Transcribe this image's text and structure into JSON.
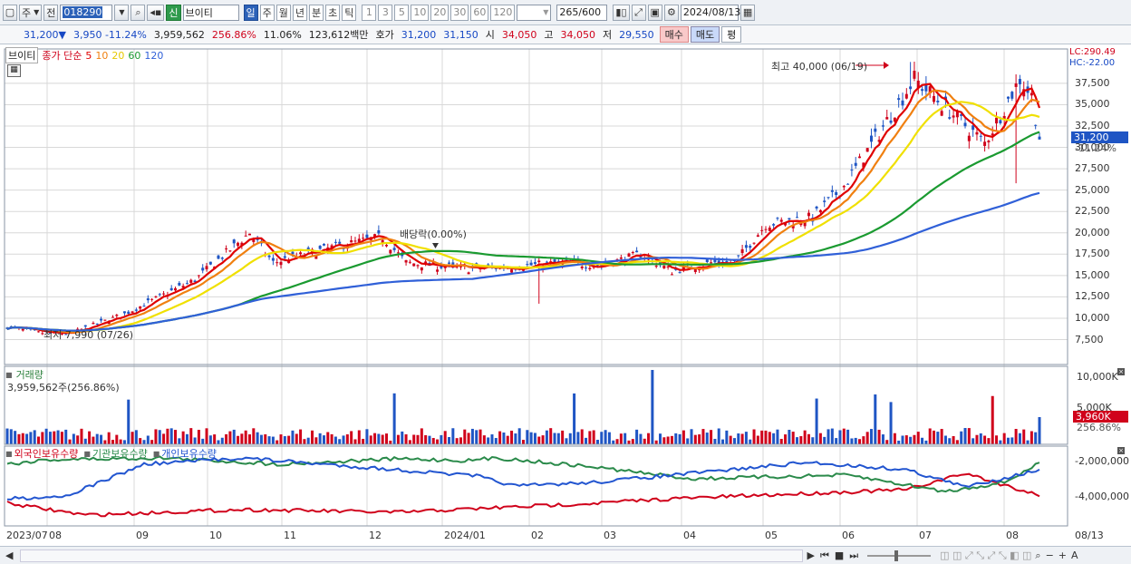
{
  "toolbar": {
    "period_a": "주",
    "prev_label": "전",
    "code": "018290",
    "name": "브이티",
    "name_tag": "신",
    "periods": [
      "일",
      "주",
      "월",
      "년",
      "분",
      "초",
      "틱"
    ],
    "intervals": [
      "1",
      "3",
      "5",
      "10",
      "20",
      "30",
      "60",
      "120"
    ],
    "count_current": "265",
    "count_total": "/600",
    "date": "2024/08/13"
  },
  "quote": {
    "price": "31,200",
    "change": "3,950",
    "change_pct": "-11.24%",
    "volume": "3,959,562",
    "vol_ratio": "256.86%",
    "turnover": "11.06%",
    "amount": "123,612백만",
    "ask_label": "호가",
    "ask": "31,200",
    "bid": "31,150",
    "open_label": "시",
    "open": "34,050",
    "high_label": "고",
    "high": "34,050",
    "low_label": "저",
    "low": "29,550",
    "buy": "매수",
    "sell": "매도",
    "eval": "평"
  },
  "legend": {
    "stock": "브이티",
    "close_label": "종가 단순",
    "ma": [
      "5",
      "10",
      "20",
      "60",
      "120"
    ],
    "ma_colors": [
      "#e00000",
      "#f08010",
      "#f0e000",
      "#1a9a30",
      "#3060d8"
    ]
  },
  "price_axis": [
    "37,500",
    "35,000",
    "32,500",
    "30,000",
    "27,500",
    "25,000",
    "22,500",
    "20,000",
    "17,500",
    "15,000",
    "12,500",
    "10,000",
    "7,500"
  ],
  "lc_label": "LC:290.49",
  "hc_label": "HC:-22.00",
  "current_price_label": "31,200",
  "current_pct_label": "-11.24%",
  "annotations": {
    "high": "최고 40,000 (06/19)",
    "low": "최저 7,990 (07/26)",
    "dividend": "배당락(0.00%)"
  },
  "volume_panel": {
    "title": "거래량",
    "value": "3,959,562주(256.86%)",
    "axis": [
      "10,000K",
      "5,000K"
    ],
    "current": "3,960K",
    "current_pct": "256.86%"
  },
  "holdings_panel": {
    "series": [
      {
        "name": "외국인보유수량",
        "color": "#d0021b"
      },
      {
        "name": "기관보유수량",
        "color": "#2a8a4a"
      },
      {
        "name": "개인보유수량",
        "color": "#2255d0"
      }
    ],
    "axis": [
      "-2,000,000",
      "-4,000,000"
    ]
  },
  "x_axis": [
    "2023/07",
    "08",
    "09",
    "10",
    "11",
    "12",
    "2024/01",
    "02",
    "03",
    "04",
    "05",
    "06",
    "07",
    "08",
    "08/13"
  ],
  "colors": {
    "up": "#d0021b",
    "down": "#1f55c4",
    "grid": "#d8d8d8"
  }
}
